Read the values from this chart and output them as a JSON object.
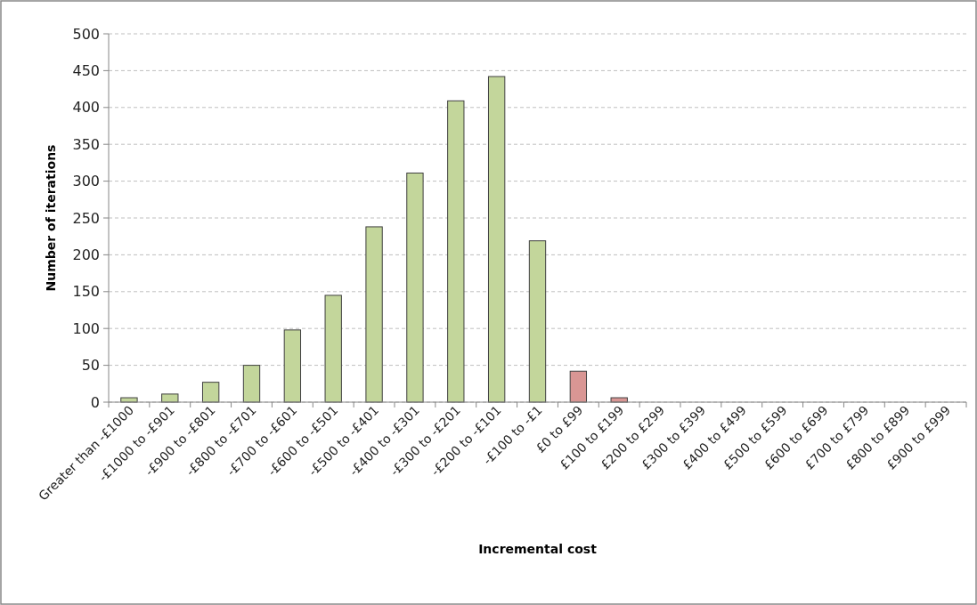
{
  "chart_data": {
    "type": "bar",
    "xlabel": "Incremental cost",
    "ylabel": "Number of iterations",
    "categories": [
      "Greater than -£1000",
      "-£1000 to -£901",
      "-£900 to -£801",
      "-£800 to -£701",
      "-£700 to -£601",
      "-£600 to -£501",
      "-£500 to -£401",
      "-£400 to -£301",
      "-£300 to -£201",
      "-£200 to -£101",
      "-£100 to -£1",
      "£0 to £99",
      "£100 to £199",
      "£200 to £299",
      "£300 to £399",
      "£400 to £499",
      "£500 to £599",
      "£600 to £699",
      "£700 to £799",
      "£800 to £899",
      "£900 to £999"
    ],
    "values": [
      6,
      11,
      27,
      50,
      98,
      145,
      238,
      311,
      409,
      442,
      219,
      42,
      6,
      0,
      0,
      0,
      0,
      0,
      0,
      0,
      0
    ],
    "colors": [
      "#c3d69b",
      "#c3d69b",
      "#c3d69b",
      "#c3d69b",
      "#c3d69b",
      "#c3d69b",
      "#c3d69b",
      "#c3d69b",
      "#c3d69b",
      "#c3d69b",
      "#c3d69b",
      "#d99694",
      "#d99694",
      "#d99694",
      "#d99694",
      "#d99694",
      "#d99694",
      "#d99694",
      "#d99694",
      "#d99694",
      "#d99694"
    ],
    "ylim": [
      0,
      500
    ],
    "yticks": [
      0,
      50,
      100,
      150,
      200,
      250,
      300,
      350,
      400,
      450,
      500
    ],
    "grid": "y"
  }
}
